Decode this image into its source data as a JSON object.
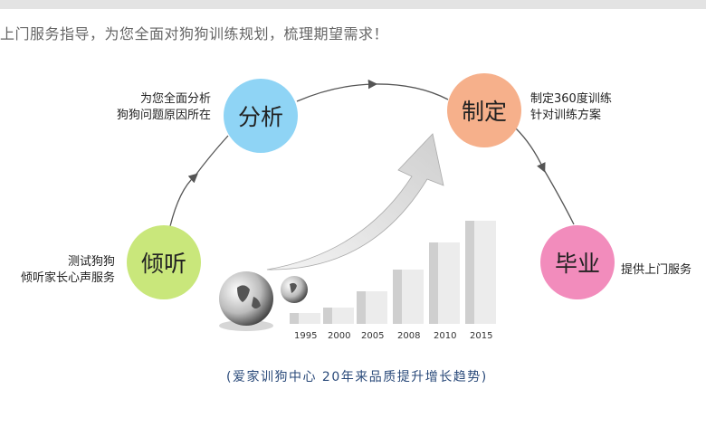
{
  "headline": "上门服务指导，为您全面对狗狗训练规划，梳理期望需求！",
  "steps": [
    {
      "label": "倾听",
      "desc": [
        "测试狗狗",
        "倾听家长心声服务"
      ],
      "color": "#c9e77b"
    },
    {
      "label": "分析",
      "desc": [
        "为您全面分析",
        "狗狗问题原因所在"
      ],
      "color": "#8fd4f5"
    },
    {
      "label": "制定",
      "desc": [
        "制定360度训练",
        "针对训练方案"
      ],
      "color": "#f6b08b"
    },
    {
      "label": "毕业",
      "desc": [
        "提供上门服务"
      ],
      "color": "#f28cbc"
    }
  ],
  "chart_data": {
    "type": "bar",
    "categories": [
      "1995",
      "2000",
      "2005",
      "2008",
      "2010",
      "2015"
    ],
    "values": [
      1,
      1.5,
      3,
      5,
      7.5,
      9.5
    ]
  },
  "caption": "(爱家训狗中心 20年来品质提升增长趋势)"
}
